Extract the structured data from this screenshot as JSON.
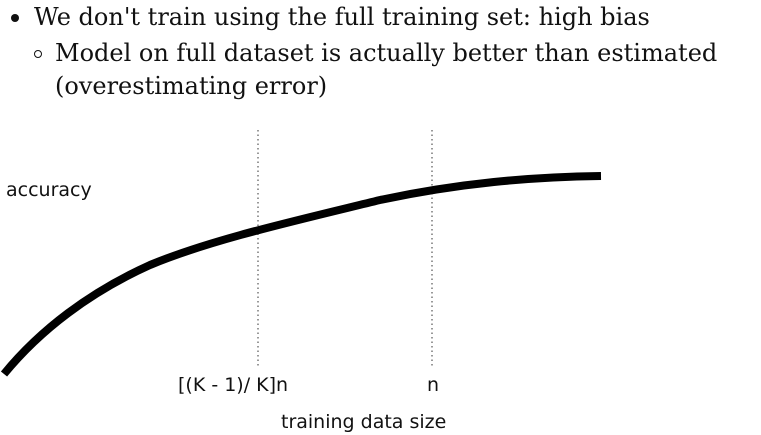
{
  "bullets": {
    "item1": "We don't train using the full training set: high bias",
    "sub1_line1": "Model on full dataset is actually better than estimated",
    "sub1_line2": "(overestimating error)"
  },
  "diagram": {
    "ylabel": "accuracy",
    "xlabel": "training data size",
    "marker1_label": "[(K - 1)/ K]n",
    "marker2_label": "n"
  }
}
